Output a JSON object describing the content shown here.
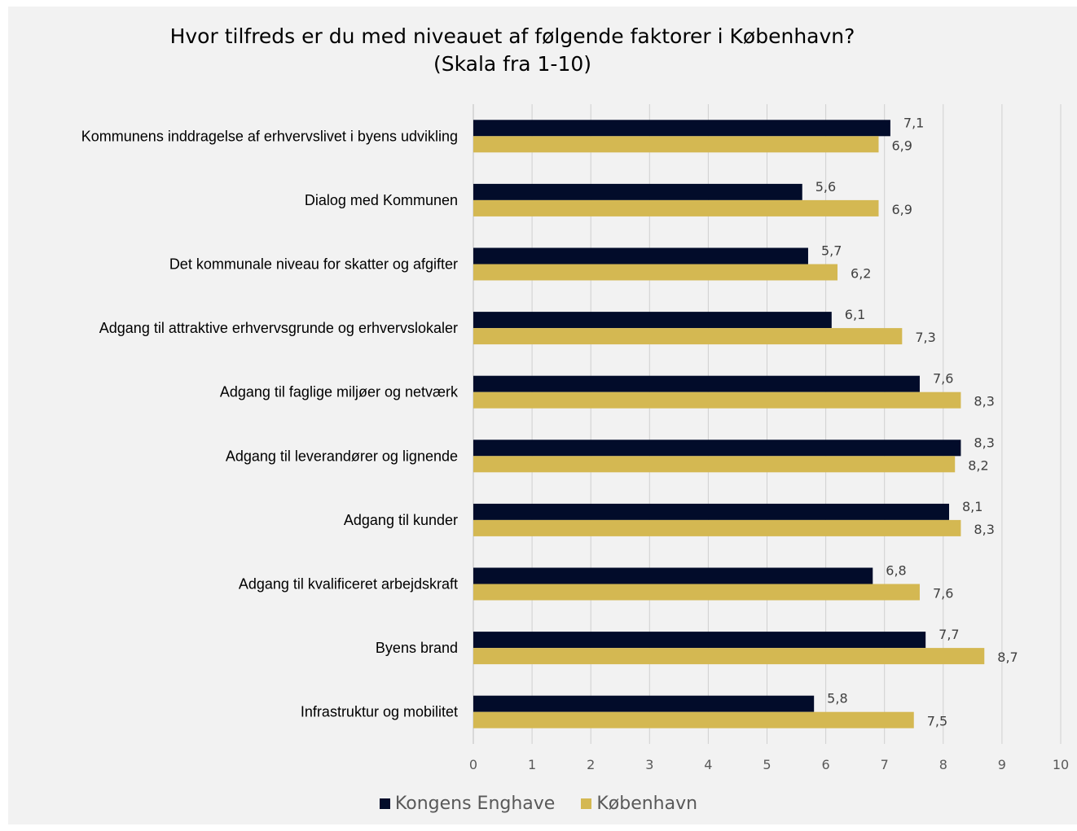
{
  "chart_data": {
    "type": "bar",
    "orientation": "horizontal",
    "title_lines": [
      "Hvor tilfreds er du med niveauet af følgende faktorer i København?",
      "(Skala fra 1-10)"
    ],
    "categories": [
      "Kommunens inddragelse af erhvervslivet i byens udvikling",
      "Dialog med Kommunen",
      "Det kommunale niveau for skatter og afgifter",
      "Adgang til attraktive erhvervsgrunde og erhvervslokaler",
      "Adgang til faglige miljøer og netværk",
      "Adgang til leverandører og lignende",
      "Adgang til kunder",
      "Adgang til kvalificeret arbejdskraft",
      "Byens brand",
      "Infrastruktur og mobilitet"
    ],
    "series": [
      {
        "name": "Kongens Enghave",
        "color": "#020c2a",
        "values": [
          7.1,
          5.6,
          5.7,
          6.1,
          7.6,
          8.3,
          8.1,
          6.8,
          7.7,
          5.8
        ],
        "labels": [
          "7,1",
          "5,6",
          "5,7",
          "6,1",
          "7,6",
          "8,3",
          "8,1",
          "6,8",
          "7,7",
          "5,8"
        ]
      },
      {
        "name": "København",
        "color": "#d4b852",
        "values": [
          6.9,
          6.9,
          6.2,
          7.3,
          8.3,
          8.2,
          8.3,
          7.6,
          8.7,
          7.5
        ],
        "labels": [
          "6,9",
          "6,9",
          "6,2",
          "7,3",
          "8,3",
          "8,2",
          "8,3",
          "7,6",
          "8,7",
          "7,5"
        ]
      }
    ],
    "xlim": [
      0,
      10
    ],
    "xticks": [
      "0",
      "1",
      "2",
      "3",
      "4",
      "5",
      "6",
      "7",
      "8",
      "9",
      "10"
    ],
    "grid": true,
    "legend": "bottom-center"
  }
}
